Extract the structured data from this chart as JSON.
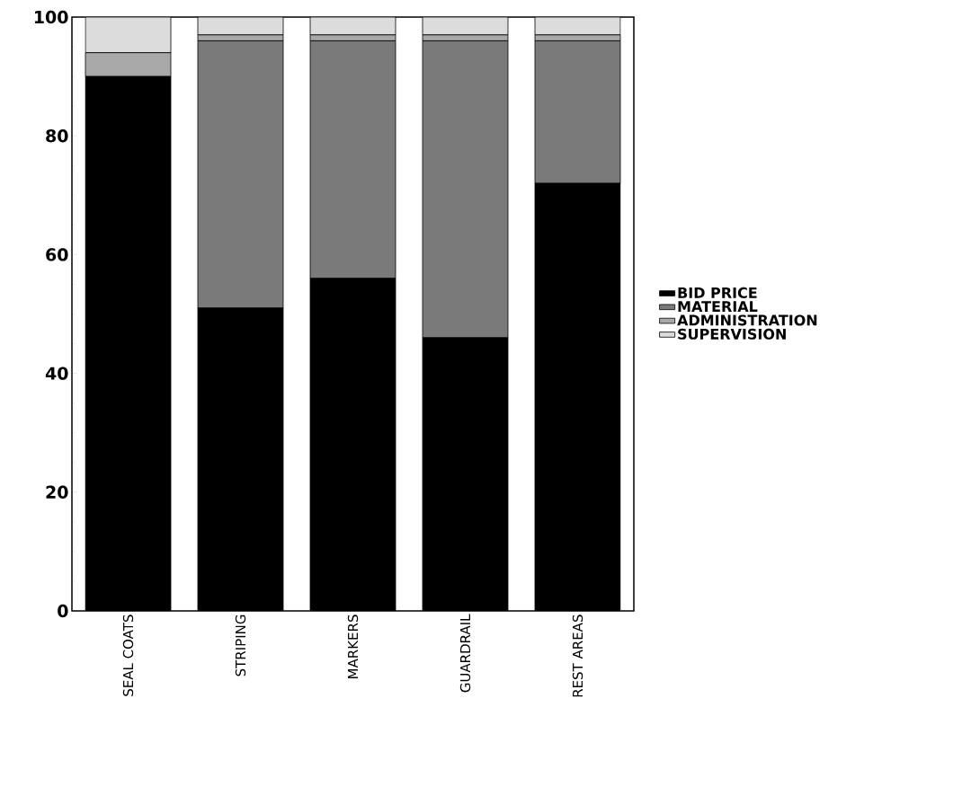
{
  "chart_data": {
    "type": "bar",
    "stacked": true,
    "categories": [
      "SEAL COATS",
      "STRIPING",
      "MARKERS",
      "GUARDRAIL",
      "REST AREAS"
    ],
    "series": [
      {
        "name": "BID PRICE",
        "color": "#000000",
        "values": [
          90,
          51,
          56,
          46,
          72
        ]
      },
      {
        "name": "MATERIAL",
        "color": "#7a7a7a",
        "values": [
          0,
          45,
          40,
          50,
          24
        ]
      },
      {
        "name": "ADMINISTRATION",
        "color": "#a8a8a8",
        "values": [
          4,
          1,
          1,
          1,
          1
        ]
      },
      {
        "name": "SUPERVISION",
        "color": "#dcdcdc",
        "values": [
          6,
          3,
          3,
          3,
          3
        ]
      }
    ],
    "ylim": [
      0,
      100
    ],
    "yticks": [
      0,
      20,
      40,
      60,
      80,
      100
    ],
    "grid": false,
    "legend": "right"
  }
}
